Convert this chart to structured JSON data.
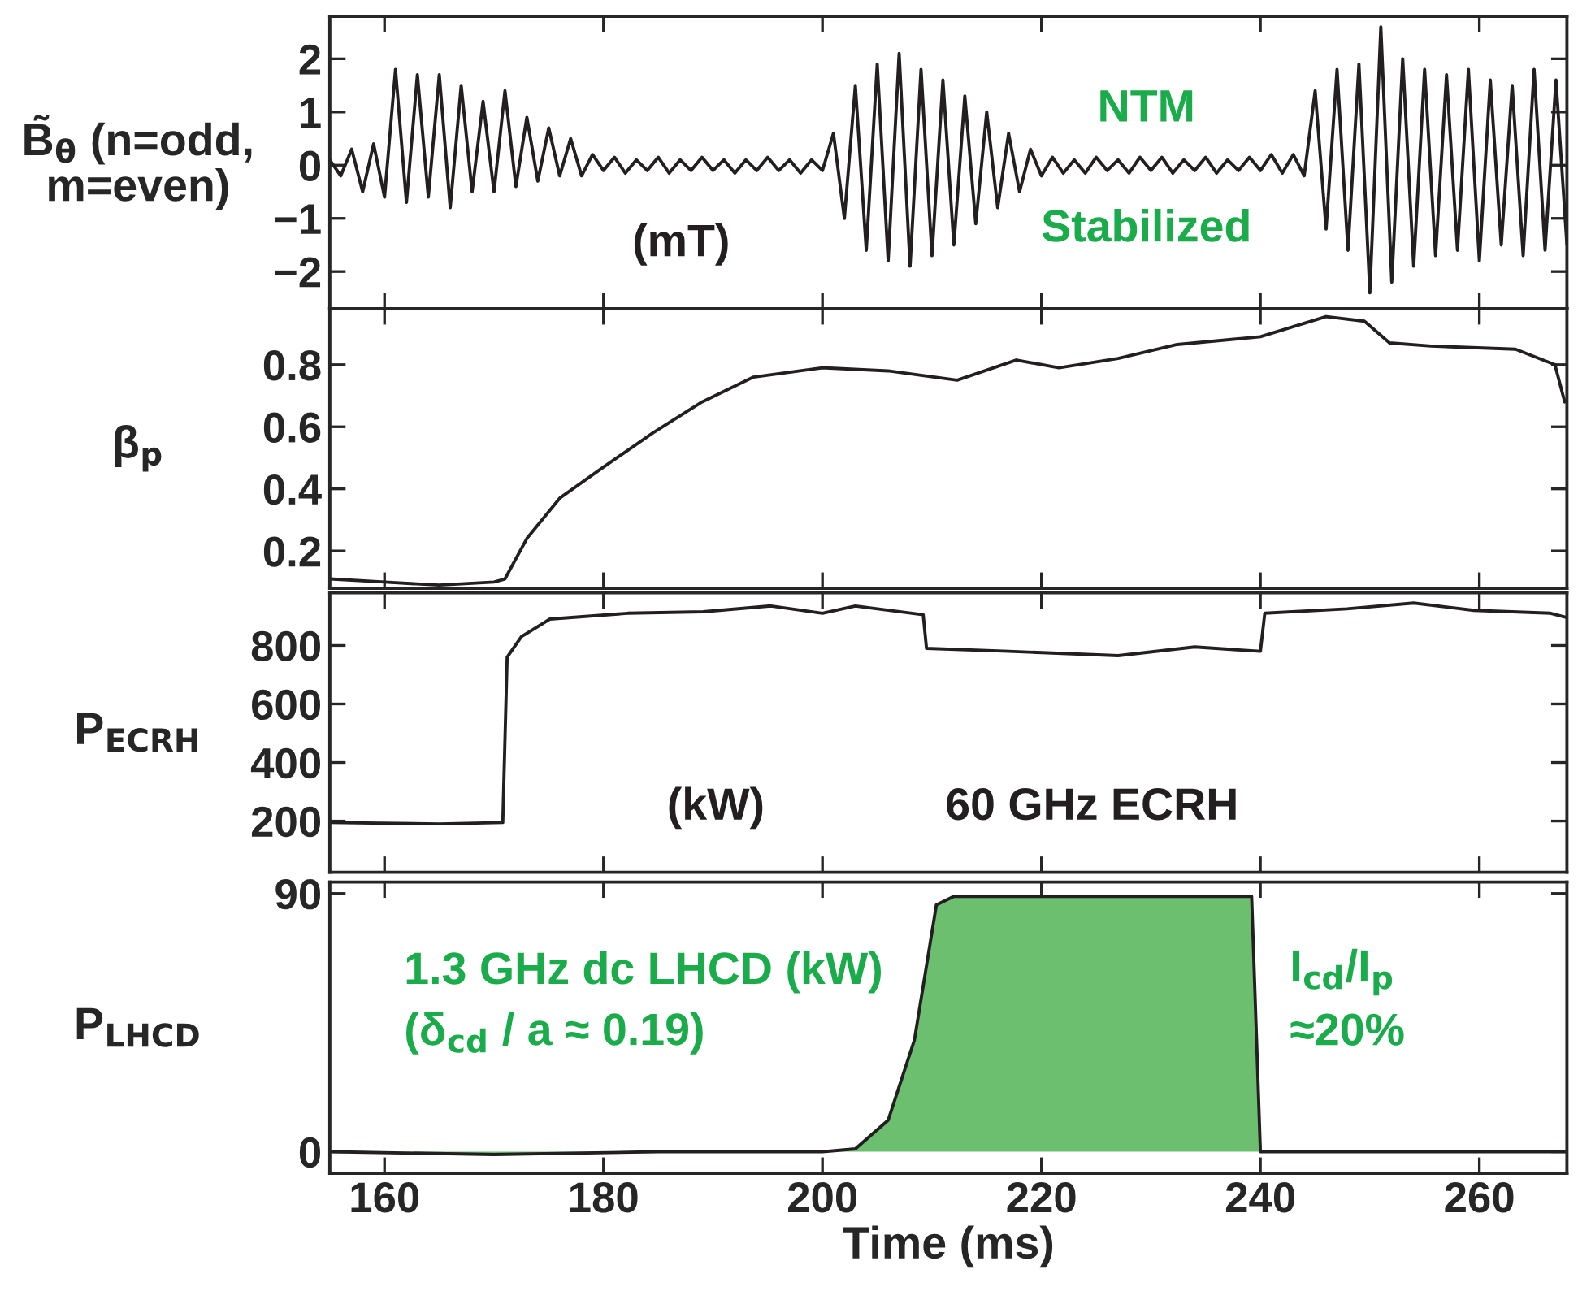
{
  "chart_data": [
    {
      "type": "line",
      "ylabel": "B̃$_{θ}$ (n=odd,\nm=even)",
      "xlim": [
        155,
        268
      ],
      "xticks": [
        160,
        180,
        200,
        220,
        240,
        260
      ],
      "ylim": [
        -2.7,
        2.8
      ],
      "yticks": [
        {
          "value": -2,
          "label": "−2"
        },
        {
          "value": -1,
          "label": "−1"
        },
        0,
        1,
        2
      ],
      "tick_labels": "y",
      "annotations": [
        "(mT)",
        "NTM",
        "Stabilized"
      ],
      "series": [
        {
          "color": "#231f20",
          "x": [
            155,
            156,
            157,
            158,
            159,
            160,
            161,
            162,
            163,
            164,
            165,
            166,
            167,
            168,
            169,
            170,
            171,
            172,
            173,
            174,
            175,
            176,
            177,
            178,
            179,
            180,
            181,
            182,
            183,
            184,
            185,
            186,
            187,
            188,
            189,
            190,
            191,
            192,
            193,
            194,
            195,
            196,
            197,
            198,
            199,
            200,
            201,
            202,
            203,
            204,
            205,
            206,
            207,
            208,
            209,
            210,
            211,
            212,
            213,
            214,
            215,
            216,
            217,
            218,
            219,
            220,
            221,
            222,
            223,
            224,
            225,
            226,
            227,
            228,
            229,
            230,
            231,
            232,
            233,
            234,
            235,
            236,
            237,
            238,
            239,
            240,
            241,
            242,
            243,
            244,
            245,
            246,
            247,
            248,
            249,
            250,
            251,
            252,
            253,
            254,
            255,
            256,
            257,
            258,
            259,
            260,
            261,
            262,
            263,
            264,
            265,
            266,
            267,
            268
          ],
          "values": [
            0.1,
            -0.2,
            0.3,
            -0.5,
            0.4,
            -0.6,
            1.8,
            -0.7,
            1.7,
            -0.6,
            1.7,
            -0.8,
            1.5,
            -0.5,
            1.2,
            -0.5,
            1.4,
            -0.4,
            0.9,
            -0.3,
            0.7,
            -0.2,
            0.5,
            -0.2,
            0.2,
            -0.1,
            0.15,
            -0.15,
            0.1,
            -0.1,
            0.15,
            -0.15,
            0.1,
            -0.1,
            0.15,
            -0.1,
            0.1,
            -0.15,
            0.1,
            -0.1,
            0.15,
            -0.1,
            0.1,
            -0.15,
            0.1,
            -0.1,
            0.6,
            -1.0,
            1.5,
            -1.6,
            1.9,
            -1.8,
            2.1,
            -1.9,
            1.8,
            -1.7,
            1.6,
            -1.5,
            1.3,
            -1.1,
            1.0,
            -0.8,
            0.6,
            -0.5,
            0.3,
            -0.2,
            0.15,
            -0.15,
            0.1,
            -0.15,
            0.15,
            -0.1,
            0.1,
            -0.15,
            0.15,
            -0.1,
            0.15,
            -0.15,
            0.1,
            -0.1,
            0.15,
            -0.15,
            0.1,
            -0.1,
            0.15,
            -0.1,
            0.2,
            -0.15,
            0.2,
            -0.2,
            1.4,
            -1.2,
            1.8,
            -1.6,
            1.9,
            -2.4,
            2.6,
            -2.2,
            2.0,
            -1.9,
            1.8,
            -1.7,
            1.7,
            -1.6,
            1.8,
            -1.8,
            1.6,
            -1.5,
            1.5,
            -1.7,
            1.8,
            -1.6,
            1.6,
            -1.5
          ]
        }
      ]
    },
    {
      "type": "line",
      "ylabel": "β$_{p}$",
      "xlim": [
        155,
        268
      ],
      "xticks": [
        160,
        180,
        200,
        220,
        240,
        260
      ],
      "ylim": [
        0.08,
        0.98
      ],
      "yticks": [
        0.2,
        0.4,
        0.6,
        0.8
      ],
      "tick_labels": "y",
      "series": [
        {
          "color": "#231f20",
          "x": [
            155,
            160,
            165,
            170,
            171,
            173,
            176,
            180,
            184.5,
            189,
            193.7,
            200,
            206,
            212.3,
            217.7,
            221.6,
            227,
            232.4,
            240,
            246,
            249.5,
            251.8,
            255.6,
            263.3,
            266.9,
            267.8
          ],
          "values": [
            0.11,
            0.1,
            0.09,
            0.1,
            0.11,
            0.24,
            0.37,
            0.47,
            0.58,
            0.68,
            0.76,
            0.79,
            0.78,
            0.75,
            0.815,
            0.79,
            0.82,
            0.865,
            0.89,
            0.955,
            0.94,
            0.87,
            0.86,
            0.85,
            0.8,
            0.68
          ]
        }
      ]
    },
    {
      "type": "line",
      "ylabel": "P$_{ECRH}$",
      "xlim": [
        155,
        268
      ],
      "xticks": [
        160,
        180,
        200,
        220,
        240,
        260
      ],
      "ylim": [
        25,
        980
      ],
      "yticks": [
        200,
        400,
        600,
        800
      ],
      "tick_labels": "y",
      "annotations": [
        "(kW)",
        "60 GHz ECRH"
      ],
      "series": [
        {
          "color": "#231f20",
          "x": [
            155,
            165,
            170.8,
            171.2,
            172.5,
            175.1,
            182.2,
            189.1,
            195.3,
            200,
            203,
            209.2,
            209.5,
            217,
            227,
            234,
            240,
            240.4,
            247.9,
            254,
            259.5,
            266.5,
            268
          ],
          "values": [
            195,
            190,
            195,
            760,
            830,
            890,
            910,
            915,
            935,
            910,
            935,
            905,
            790,
            780,
            765,
            795,
            780,
            910,
            925,
            945,
            920,
            910,
            895
          ]
        }
      ]
    },
    {
      "type": "area",
      "ylabel": "P$_{LHCD}$",
      "xlabel": "Time (ms)",
      "xlim": [
        155,
        268
      ],
      "xticks": [
        160,
        180,
        200,
        220,
        240,
        260
      ],
      "ylim": [
        -7.5,
        94
      ],
      "yticks": [
        0,
        90
      ],
      "annotations": [
        "1.3 GHz dc LHCD (kW)",
        "(δ$_{cd}$ / a ≈ 0.19)",
        "I$_{cd}$/I$_{p}$",
        "≈20%"
      ],
      "series": [
        {
          "color": "#6cbf6e",
          "x": [
            155,
            170,
            185,
            200,
            203,
            206,
            208.4,
            210.4,
            212,
            220,
            230,
            239.2,
            240,
            250,
            260,
            268
          ],
          "values": [
            0,
            -1,
            0,
            0,
            1,
            11,
            39,
            86,
            89,
            89,
            89,
            89,
            0,
            0,
            0,
            0
          ]
        }
      ]
    }
  ]
}
